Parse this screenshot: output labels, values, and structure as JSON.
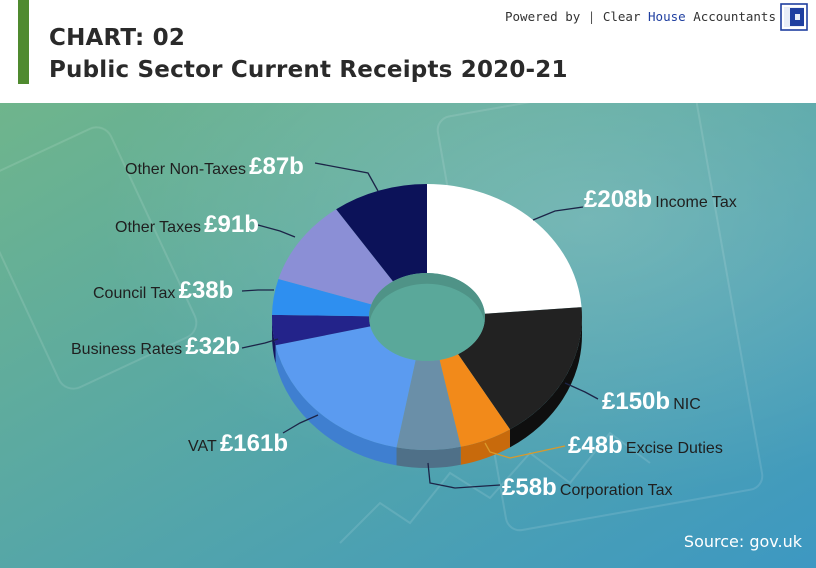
{
  "header": {
    "chart_number": "CHART: 02",
    "title": "Public Sector Current Receipts 2020-21",
    "powered_by": "Powered by",
    "separator": "|",
    "brand_clear": "Clear",
    "brand_house": "House",
    "brand_accountants": "Accountants"
  },
  "source": "Source: gov.uk",
  "colors": {
    "accent": "#4f8a2f",
    "brand_blue": "#1f3fa0",
    "background_top": "#6fb58c",
    "background_bottom": "#3d98c2",
    "leader_line": "#1c2447",
    "leader_line_excise": "#d99a2b"
  },
  "chart_data": {
    "type": "pie",
    "style": "3d-donut",
    "title": "Public Sector Current Receipts 2020-21",
    "unit": "£ billion",
    "slices": [
      {
        "name": "Income Tax",
        "value": 208,
        "value_label": "£208b",
        "color": "#ffffff",
        "side_color": "#d9d9d9"
      },
      {
        "name": "NIC",
        "value": 150,
        "value_label": "£150b",
        "color": "#222222",
        "side_color": "#0f0f0f"
      },
      {
        "name": "Excise Duties",
        "value": 48,
        "value_label": "£48b",
        "color": "#f28a1a",
        "side_color": "#c86a0c"
      },
      {
        "name": "Corporation Tax",
        "value": 58,
        "value_label": "£58b",
        "color": "#6a8fa8",
        "side_color": "#4f7088"
      },
      {
        "name": "VAT",
        "value": 161,
        "value_label": "£161b",
        "color": "#5b9bf0",
        "side_color": "#3f7fd0"
      },
      {
        "name": "Business Rates",
        "value": 32,
        "value_label": "£32b",
        "color": "#23238a",
        "side_color": "#14145c"
      },
      {
        "name": "Council Tax",
        "value": 38,
        "value_label": "£38b",
        "color": "#2e8ff0",
        "side_color": "#1d6cc0"
      },
      {
        "name": "Other Taxes",
        "value": 91,
        "value_label": "£91b",
        "color": "#8b8fd6",
        "side_color": "#6a6eb8"
      },
      {
        "name": "Other Non-Taxes",
        "value": 87,
        "value_label": "£87b",
        "color": "#0c1259",
        "side_color": "#070a38"
      }
    ]
  }
}
